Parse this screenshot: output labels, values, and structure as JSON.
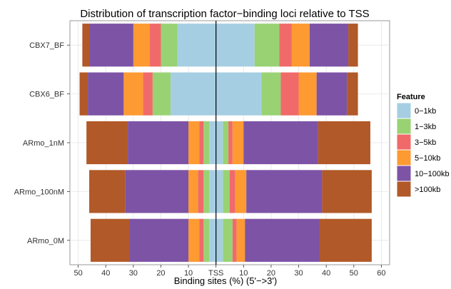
{
  "chart_data": {
    "type": "bar",
    "title": "Distribution of transcription factor−binding loci relative to TSS",
    "xlabel": "Binding sites (%) (5'−>3')",
    "ylabel": "",
    "x_ticks": [
      {
        "value": -50,
        "label": "50"
      },
      {
        "value": -40,
        "label": "40"
      },
      {
        "value": -30,
        "label": "30"
      },
      {
        "value": -20,
        "label": "20"
      },
      {
        "value": -10,
        "label": "10"
      },
      {
        "value": 0,
        "label": "TSS"
      },
      {
        "value": 10,
        "label": "10"
      },
      {
        "value": 20,
        "label": "20"
      },
      {
        "value": 30,
        "label": "30"
      },
      {
        "value": 40,
        "label": "40"
      },
      {
        "value": 50,
        "label": "50"
      },
      {
        "value": 60,
        "label": "60"
      }
    ],
    "xlim": [
      -53,
      63
    ],
    "grid": true,
    "legend_position": "right",
    "legend_title": "Feature",
    "features": [
      {
        "name": "0−1kb",
        "color": "#a6cee3"
      },
      {
        "name": "1−3kb",
        "color": "#99d273"
      },
      {
        "name": "3−5kb",
        "color": "#f06a6a"
      },
      {
        "name": "5−10kb",
        "color": "#fd9a32"
      },
      {
        "name": "10−100kb",
        "color": "#7d53a6"
      },
      {
        "name": ">100kb",
        "color": "#b15928"
      }
    ],
    "categories": [
      "CBX7_BF",
      "CBX6_BF",
      "ARmo_1nM",
      "ARmo_100nM",
      "ARmo_0M"
    ],
    "upstream": [
      [
        14,
        6,
        4,
        6,
        16,
        2.5
      ],
      [
        16.5,
        6.5,
        3.5,
        7,
        13,
        3
      ],
      [
        2.5,
        2,
        1.5,
        4,
        22,
        15
      ],
      [
        2.5,
        2,
        2,
        3.5,
        23,
        13
      ],
      [
        2.5,
        2,
        1.5,
        4,
        21.5,
        14
      ]
    ],
    "downstream": [
      [
        14,
        9,
        4.5,
        6.5,
        14,
        3.5
      ],
      [
        16.5,
        7,
        6.5,
        6.5,
        11,
        4
      ],
      [
        2.5,
        2,
        1.5,
        4,
        27,
        19
      ],
      [
        2.5,
        2.5,
        2,
        4,
        27.5,
        18
      ],
      [
        2.5,
        3.5,
        1.5,
        3,
        27,
        19
      ]
    ]
  }
}
